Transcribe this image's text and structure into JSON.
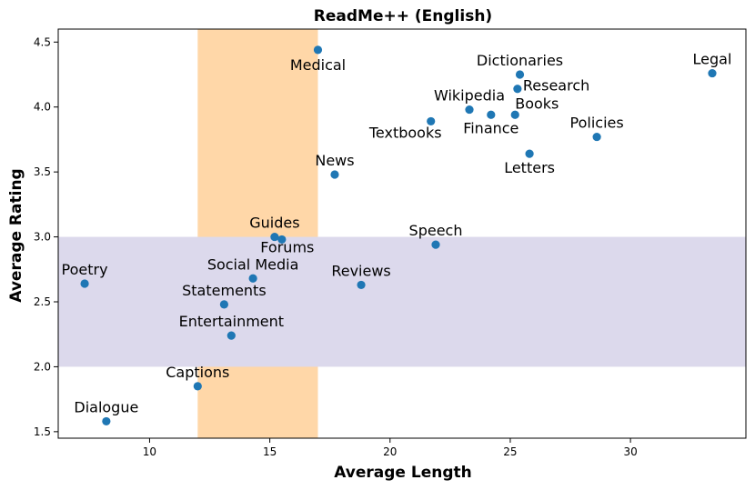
{
  "chart_data": {
    "type": "scatter",
    "title": "ReadMe++ (English)",
    "xlabel": "Average Length",
    "ylabel": "Average Rating",
    "xlim": [
      6.2,
      34.8
    ],
    "ylim": [
      1.45,
      4.6
    ],
    "xticks": [
      10,
      15,
      20,
      25,
      30
    ],
    "xtick_labels": [
      "10",
      "15",
      "20",
      "25",
      "30"
    ],
    "yticks": [
      1.5,
      2.0,
      2.5,
      3.0,
      3.5,
      4.0,
      4.5
    ],
    "ytick_labels": [
      "1.5",
      "2.0",
      "2.5",
      "3.0",
      "3.5",
      "4.0",
      "4.5"
    ],
    "grid": false,
    "point_color": "#1f77b4",
    "bands": [
      {
        "orientation": "vertical",
        "from": 12,
        "to": 17,
        "color": "#ffd7a8"
      },
      {
        "orientation": "horizontal",
        "from": 2.0,
        "to": 3.0,
        "color": "#dcd9ec"
      }
    ],
    "points": [
      {
        "label": "Medical",
        "x": 17.0,
        "y": 4.44
      },
      {
        "label": "Dictionaries",
        "x": 25.4,
        "y": 4.25
      },
      {
        "label": "Research",
        "x": 25.3,
        "y": 4.14
      },
      {
        "label": "Legal",
        "x": 33.4,
        "y": 4.26
      },
      {
        "label": "Wikipedia",
        "x": 23.3,
        "y": 3.98
      },
      {
        "label": "Books",
        "x": 25.2,
        "y": 3.94
      },
      {
        "label": "Finance",
        "x": 24.2,
        "y": 3.94
      },
      {
        "label": "Textbooks",
        "x": 21.7,
        "y": 3.89
      },
      {
        "label": "Policies",
        "x": 28.6,
        "y": 3.77
      },
      {
        "label": "Letters",
        "x": 25.8,
        "y": 3.64
      },
      {
        "label": "News",
        "x": 17.7,
        "y": 3.48
      },
      {
        "label": "Guides",
        "x": 15.2,
        "y": 3.0
      },
      {
        "label": "Forums",
        "x": 15.5,
        "y": 2.98
      },
      {
        "label": "Speech",
        "x": 21.9,
        "y": 2.94
      },
      {
        "label": "Poetry",
        "x": 7.3,
        "y": 2.64
      },
      {
        "label": "Social Media",
        "x": 14.3,
        "y": 2.68
      },
      {
        "label": "Reviews",
        "x": 18.8,
        "y": 2.63
      },
      {
        "label": "Statements",
        "x": 13.1,
        "y": 2.48
      },
      {
        "label": "Entertainment",
        "x": 13.4,
        "y": 2.24
      },
      {
        "label": "Captions",
        "x": 12.0,
        "y": 1.85
      },
      {
        "label": "Dialogue",
        "x": 8.2,
        "y": 1.58
      }
    ]
  }
}
